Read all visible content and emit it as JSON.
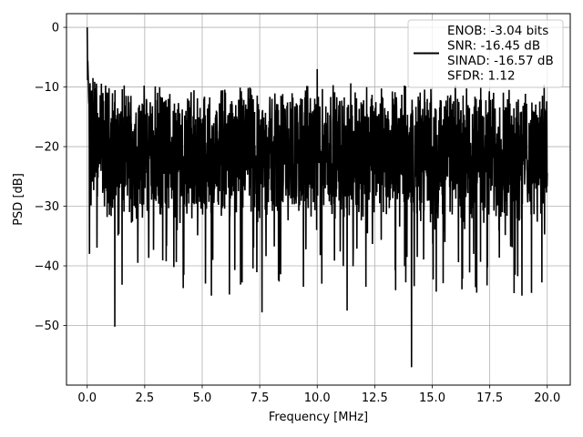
{
  "chart_data": {
    "type": "line",
    "xlabel": "Frequency [MHz]",
    "ylabel": "PSD [dB]",
    "xlim": [
      -0.9,
      21.0
    ],
    "ylim": [
      -60,
      2.3
    ],
    "xticks": [
      0.0,
      2.5,
      5.0,
      7.5,
      10.0,
      12.5,
      15.0,
      17.5,
      20.0
    ],
    "xtick_labels": [
      "0.0",
      "2.5",
      "5.0",
      "7.5",
      "10.0",
      "12.5",
      "15.0",
      "17.5",
      "20.0"
    ],
    "yticks": [
      0,
      -10,
      -20,
      -30,
      -40,
      -50
    ],
    "ytick_labels": [
      "0",
      "−10",
      "−20",
      "−30",
      "−40",
      "−50"
    ],
    "grid": true,
    "legend_position": "top-right",
    "series": [
      {
        "color": "#000000",
        "x_start": 0.0,
        "x_end": 20.0,
        "noise_floor_db": -21,
        "peaks": [
          {
            "x": 0.0,
            "y": 0.0
          },
          {
            "x": 0.04,
            "y": -6
          },
          {
            "x": 0.1,
            "y": -38
          },
          {
            "x": 0.25,
            "y": -8.5
          },
          {
            "x": 1.2,
            "y": -50.2
          },
          {
            "x": 2.2,
            "y": -39.5
          },
          {
            "x": 4.2,
            "y": -41.5
          },
          {
            "x": 5.4,
            "y": -45
          },
          {
            "x": 7.6,
            "y": -47.8
          },
          {
            "x": 9.4,
            "y": -43.5
          },
          {
            "x": 10.0,
            "y": -7.0
          },
          {
            "x": 10.2,
            "y": -43
          },
          {
            "x": 11.3,
            "y": -47.5
          },
          {
            "x": 14.1,
            "y": -57
          },
          {
            "x": 16.8,
            "y": -38
          },
          {
            "x": 18.6,
            "y": -41.5
          },
          {
            "x": 18.9,
            "y": -45
          }
        ]
      }
    ]
  },
  "legend": {
    "lines": [
      "ENOB: -3.04 bits",
      "SNR: -16.45 dB",
      "SINAD: -16.57 dB",
      "SFDR: 1.12"
    ]
  }
}
